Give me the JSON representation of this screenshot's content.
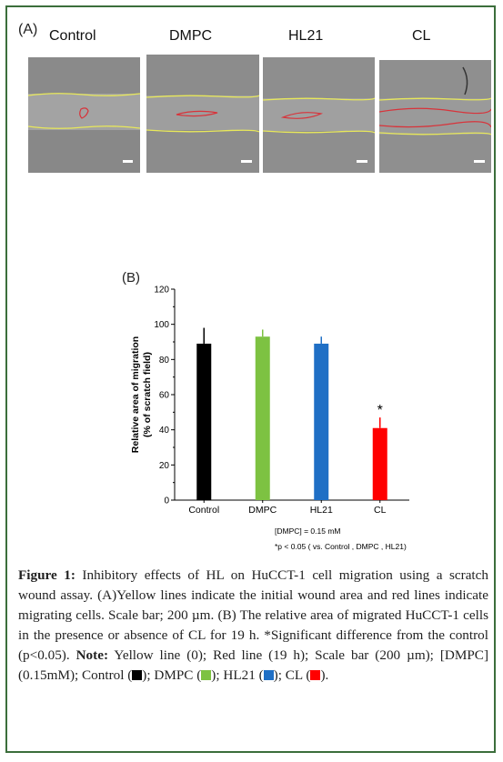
{
  "panel_a": {
    "tag": "(A)",
    "labels": [
      "Control",
      "DMPC",
      "HL21",
      "CL"
    ]
  },
  "chart_data": {
    "type": "bar",
    "panel_tag": "(B)",
    "categories": [
      "Control",
      "DMPC",
      "HL21",
      "CL"
    ],
    "values": [
      89,
      93,
      89,
      41
    ],
    "errors": [
      9,
      4,
      4,
      6
    ],
    "colors": [
      "#000000",
      "#7dc242",
      "#1f6fc5",
      "#ff0000"
    ],
    "ylabel_line1": "Relative area of migration",
    "ylabel_line2": "(% of scratch field)",
    "ylim": [
      0,
      120
    ],
    "yticks": [
      0,
      20,
      40,
      60,
      80,
      100,
      120
    ],
    "significance_marker": "*",
    "significance_index": 3,
    "footnote1": "[DMPC] = 0.15 mM",
    "footnote2": "*p < 0.05 ( vs. Control , DMPC , HL21)"
  },
  "caption": {
    "fig_label": "Figure 1:",
    "text1": " Inhibitory effects of HL on HuCCT-1 cell migration using a scratch wound assay. (A)Yellow lines indicate the initial wound area and red lines indicate migrating cells. Scale bar; 200 µm. (B) The relative area of migrated HuCCT-1 cells in the presence or absence of CL for 19 h. *Significant difference from the control (p<0.05). ",
    "note_label": "Note:",
    "text2": " Yellow line (0); Red line (19 h); Scale bar (200 µm); [DMPC] (0.15mM); Control (",
    "sep_dmpc": "); DMPC (",
    "sep_hl21": "); HL21 (",
    "sep_cl": "); CL (",
    "end": ")."
  }
}
